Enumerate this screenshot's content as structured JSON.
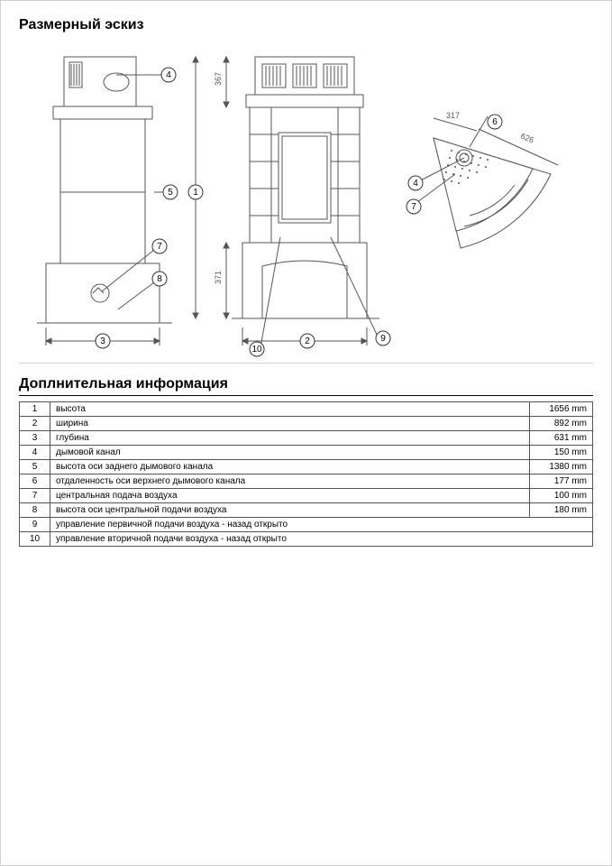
{
  "sections": {
    "sketch_title": "Размерный эскиз",
    "info_title": "Доплнительная информация"
  },
  "diagram": {
    "callout_labels": [
      "1",
      "2",
      "3",
      "4",
      "5",
      "6",
      "7",
      "8",
      "9",
      "10"
    ],
    "dim_labels": {
      "top_367": "367",
      "bot_371": "371",
      "top_317": "317",
      "top_626": "626"
    },
    "stroke_color": "#555555",
    "fill_color": "#ffffff",
    "callout_bg": "#ffffff",
    "callout_stroke": "#333333",
    "font_size_small": 9
  },
  "spec_table": {
    "rows": [
      {
        "idx": "1",
        "label": "высота",
        "value": "1656 mm"
      },
      {
        "idx": "2",
        "label": "ширина",
        "value": "892 mm"
      },
      {
        "idx": "3",
        "label": "глубина",
        "value": "631 mm"
      },
      {
        "idx": "4",
        "label": "дымовой канал",
        "value": "150 mm"
      },
      {
        "idx": "5",
        "label": "высота оси заднего дымового канала",
        "value": "1380 mm"
      },
      {
        "idx": "6",
        "label": "отдаленность оси верхнего дымового канала",
        "value": "177 mm"
      },
      {
        "idx": "7",
        "label": "центральная подача воздуха",
        "value": "100 mm"
      },
      {
        "idx": "8",
        "label": "высота оси центральной подачи воздуха",
        "value": "180 mm"
      },
      {
        "idx": "9",
        "label": "управление первичной подачи воздуха - назад открыто",
        "value": ""
      },
      {
        "idx": "10",
        "label": "управление вторичной подачи воздуха - назад открыто",
        "value": ""
      }
    ]
  }
}
